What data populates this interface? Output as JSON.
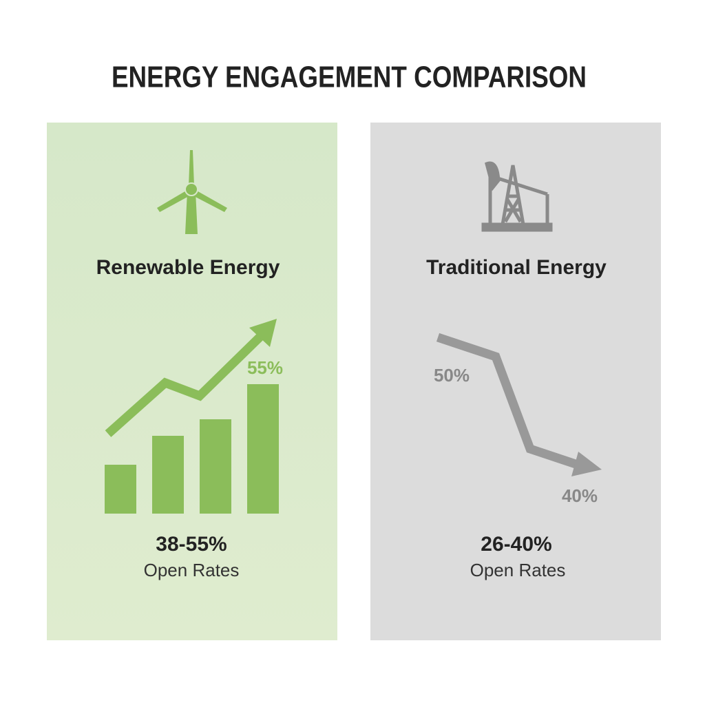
{
  "title": "ENERGY ENGAGEMENT COMPARISON",
  "panels": [
    {
      "heading": "Renewable Energy",
      "chart_labels": [
        "55%"
      ],
      "range": "38-55%",
      "caption": "Open Rates"
    },
    {
      "heading": "Traditional Energy",
      "chart_labels": [
        "50%",
        "40%"
      ],
      "range": "26-40%",
      "caption": "Open Rates"
    }
  ]
}
